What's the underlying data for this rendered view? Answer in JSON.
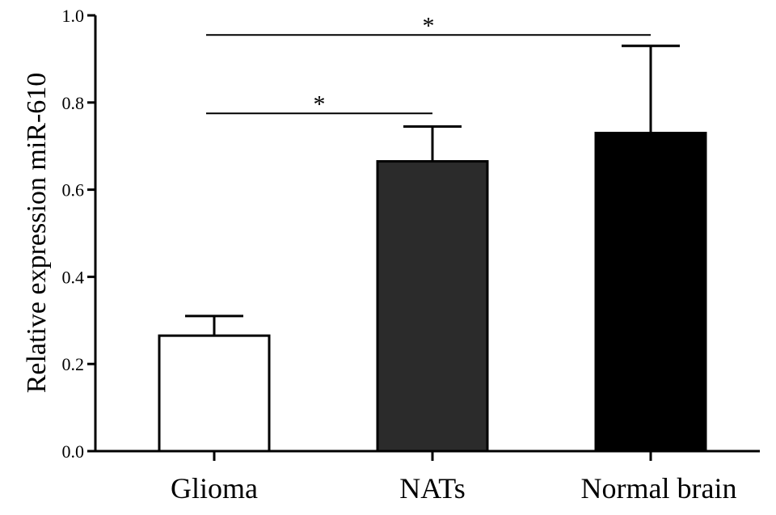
{
  "chart_data": {
    "type": "bar",
    "title": "",
    "xlabel": "",
    "ylabel": "Relative expression miR-610",
    "ylim": [
      0,
      1.0
    ],
    "yticks": [
      "0.0",
      "0.2",
      "0.4",
      "0.6",
      "0.8",
      "1.0"
    ],
    "categories": [
      "Glioma",
      "NATs",
      "Normal brain"
    ],
    "values": [
      0.265,
      0.665,
      0.73
    ],
    "errors": [
      0.045,
      0.08,
      0.2
    ],
    "bar_colors": [
      "#ffffff",
      "#2b2b2b",
      "#000000"
    ],
    "grid": false,
    "significance": [
      {
        "from": "Glioma",
        "to": "NATs",
        "y": 0.775,
        "label": "*"
      },
      {
        "from": "Glioma",
        "to": "Normal brain",
        "y": 0.955,
        "label": "*"
      }
    ]
  }
}
